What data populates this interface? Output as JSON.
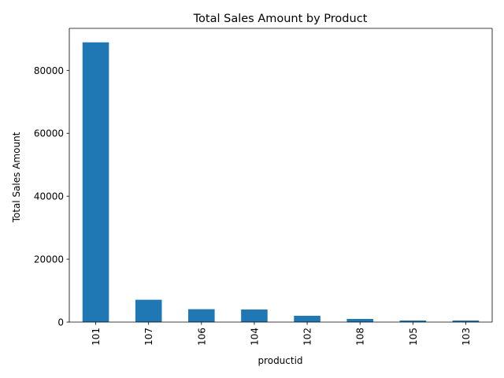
{
  "chart_data": {
    "type": "bar",
    "title": "Total Sales Amount by Product",
    "xlabel": "productid",
    "ylabel": "Total Sales Amount",
    "categories": [
      "101",
      "107",
      "106",
      "104",
      "102",
      "108",
      "105",
      "103"
    ],
    "values": [
      88900,
      7100,
      4100,
      4000,
      2000,
      1000,
      500,
      500
    ],
    "ylim": [
      0,
      93345
    ],
    "yticks": [
      0,
      20000,
      40000,
      60000,
      80000
    ],
    "ytick_labels": [
      "0",
      "20000",
      "40000",
      "60000",
      "80000"
    ],
    "grid": false,
    "legend": "none",
    "bar_color": "#1f77b4"
  }
}
